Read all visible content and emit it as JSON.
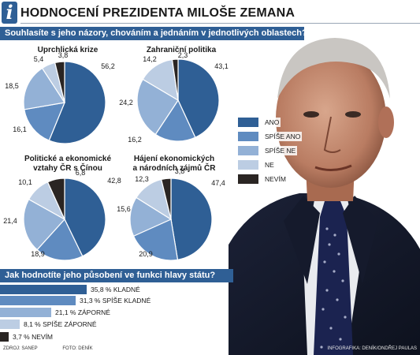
{
  "header": {
    "badge": "i",
    "title": "HODNOCENÍ PREZIDENTA MILOŠE ZEMANA"
  },
  "colors": {
    "ano": "#2f5f95",
    "spise_ano": "#5f8bc0",
    "spise_ne": "#93b1d6",
    "ne": "#bccde3",
    "nevim": "#2a2523",
    "bar_accent": "#2f5f95"
  },
  "question1": "Souhlasíte s jeho názory, chováním a jednáním v jednotlivých oblastech? (v %)",
  "question2": "Jak hodnotíte jeho působení ve funkci hlavy státu?",
  "legend": [
    {
      "label": "ANO",
      "color": "#2f5f95"
    },
    {
      "label": "SPÍŠE ANO",
      "color": "#5f8bc0"
    },
    {
      "label": "SPÍŠE NE",
      "color": "#93b1d6"
    },
    {
      "label": "NE",
      "color": "#bccde3"
    },
    {
      "label": "NEVÍM",
      "color": "#2a2523"
    }
  ],
  "chart_data": [
    {
      "type": "pie",
      "title": "Uprchlická krize",
      "categories": [
        "ANO",
        "SPÍŠE ANO",
        "SPÍŠE NE",
        "NE",
        "NEVÍM"
      ],
      "values": [
        56.2,
        16.1,
        18.5,
        5.4,
        3.8
      ],
      "labels": [
        "56,2",
        "16,1",
        "18,5",
        "5,4",
        "3,8"
      ]
    },
    {
      "type": "pie",
      "title": "Zahraniční politika",
      "categories": [
        "ANO",
        "SPÍŠE ANO",
        "SPÍŠE NE",
        "NE",
        "NEVÍM"
      ],
      "values": [
        43.1,
        16.2,
        24.2,
        14.2,
        2.3
      ],
      "labels": [
        "43,1",
        "16,2",
        "24,2",
        "14,2",
        "2,3"
      ]
    },
    {
      "type": "pie",
      "title": [
        "Politické a ekonomické",
        "vztahy ČR s Čínou"
      ],
      "categories": [
        "ANO",
        "SPÍŠE ANO",
        "SPÍŠE NE",
        "NE",
        "NEVÍM"
      ],
      "values": [
        42.8,
        18.9,
        21.4,
        10.1,
        6.8
      ],
      "labels": [
        "42,8",
        "18,9",
        "21,4",
        "10,1",
        "6,8"
      ]
    },
    {
      "type": "pie",
      "title": [
        "Hájení ekonomických",
        "a národních zájmů ČR"
      ],
      "categories": [
        "ANO",
        "SPÍŠE ANO",
        "SPÍŠE NE",
        "NE",
        "NEVÍM"
      ],
      "values": [
        47.4,
        20.9,
        15.6,
        12.3,
        3.8
      ],
      "labels": [
        "47,4",
        "20,9",
        "15,6",
        "12,3",
        "3,8"
      ]
    },
    {
      "type": "bar",
      "orientation": "horizontal",
      "categories": [
        "KLADNÉ",
        "SPÍŠE KLADNÉ",
        "ZÁPORNÉ",
        "SPÍŠE ZÁPORNÉ",
        "NEVÍM"
      ],
      "values": [
        35.8,
        31.3,
        21.1,
        8.1,
        3.7
      ],
      "labels": [
        "35,8 % KLADNÉ",
        "31,3 % SPÍŠE KLADNÉ",
        "21,1 % ZÁPORNÉ",
        "8,1 % SPÍŠE ZÁPORNÉ",
        "3,7 % NEVÍM"
      ],
      "colors": [
        "#2f5f95",
        "#5f8bc0",
        "#93b1d6",
        "#bccde3",
        "#2a2523"
      ]
    }
  ],
  "footer": {
    "source": "ZDROJ: SANEP",
    "photo": "FOTO: DENÍK",
    "credit": "INFOGRAFIKA: DENÍK/ONDŘEJ PAULAS"
  }
}
